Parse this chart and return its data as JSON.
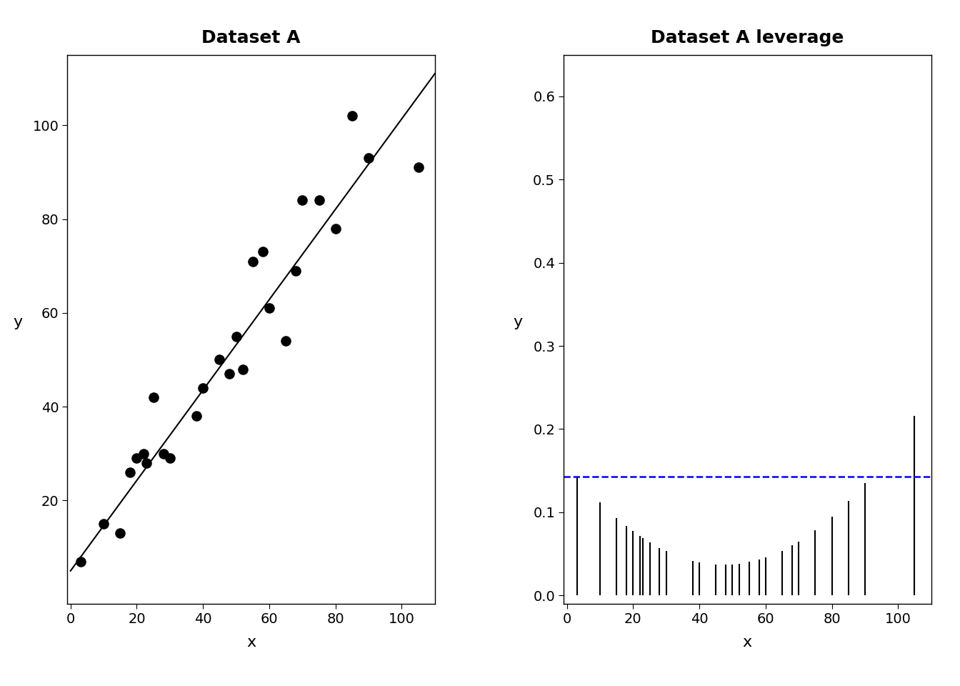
{
  "title_left": "Dataset A",
  "title_right": "Dataset A leverage",
  "xlabel": "x",
  "ylabel": "y",
  "scatter_x": [
    3,
    10,
    15,
    18,
    20,
    22,
    23,
    25,
    28,
    30,
    38,
    40,
    45,
    48,
    50,
    52,
    55,
    58,
    60,
    65,
    68,
    70,
    75,
    80,
    85,
    90,
    105
  ],
  "scatter_y": [
    7,
    15,
    13,
    26,
    29,
    30,
    28,
    42,
    30,
    29,
    38,
    44,
    50,
    47,
    55,
    48,
    71,
    73,
    61,
    54,
    69,
    84,
    84,
    78,
    102,
    93,
    91
  ],
  "fit_x": [
    0,
    110
  ],
  "fit_y": [
    5,
    111
  ],
  "leverage_threshold": 0.1429,
  "ylim_scatter": [
    -2,
    115
  ],
  "xlim_scatter": [
    -1,
    110
  ],
  "ylim_leverage": [
    -0.01,
    0.65
  ],
  "xlim_leverage": [
    -1,
    110
  ],
  "scatter_color": "#000000",
  "line_color": "#000000",
  "threshold_color": "#0000FF",
  "background_color": "#ffffff",
  "title_fontsize": 18,
  "label_fontsize": 16,
  "tick_fontsize": 14
}
